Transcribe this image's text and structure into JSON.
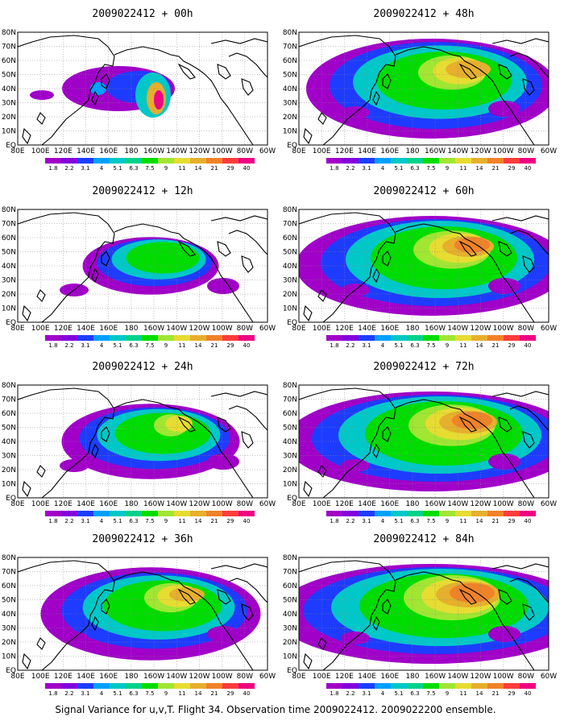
{
  "panels": [
    {
      "title": "2009022412 + 00h",
      "spread": 0.0
    },
    {
      "title": "2009022412 + 48h",
      "spread": 0.7
    },
    {
      "title": "2009022412 + 12h",
      "spread": 0.15
    },
    {
      "title": "2009022412 + 60h",
      "spread": 0.8
    },
    {
      "title": "2009022412 + 24h",
      "spread": 0.35
    },
    {
      "title": "2009022412 + 72h",
      "spread": 0.9
    },
    {
      "title": "2009022412 + 36h",
      "spread": 0.55
    },
    {
      "title": "2009022412 + 84h",
      "spread": 1.0
    }
  ],
  "lat_labels": [
    "80N",
    "70N",
    "60N",
    "50N",
    "40N",
    "30N",
    "20N",
    "10N",
    "EQ"
  ],
  "lon_labels": [
    "80E",
    "100E",
    "120E",
    "140E",
    "160E",
    "180",
    "160W",
    "140W",
    "120W",
    "100W",
    "80W",
    "60W"
  ],
  "colorbar": {
    "labels": [
      "1.8",
      "2.2",
      "3.1",
      "4",
      "5.1",
      "6.3",
      "7.5",
      "9",
      "11",
      "14",
      "21",
      "29",
      "40"
    ],
    "colors": [
      "#a000c8",
      "#8200dc",
      "#1e3cff",
      "#00a0ff",
      "#00c8c8",
      "#00d28c",
      "#00dc00",
      "#a0e632",
      "#e6dc32",
      "#e6af2d",
      "#f08228",
      "#fa3c3c",
      "#f00082"
    ]
  },
  "caption": "Signal Variance for u,v,T. Flight 34. Observation time 2009022412. 2009022200 ensemble."
}
